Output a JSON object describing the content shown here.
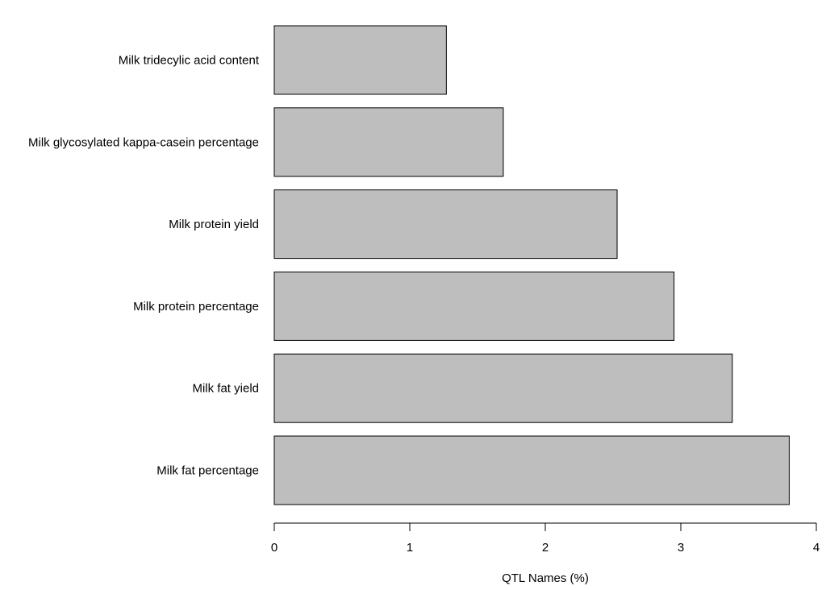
{
  "chart_data": {
    "type": "bar",
    "orientation": "horizontal",
    "categories": [
      "Milk tridecylic acid content",
      "Milk glycosylated kappa-casein percentage",
      "Milk protein yield",
      "Milk protein percentage",
      "Milk fat yield",
      "Milk fat percentage"
    ],
    "values": [
      1.27,
      1.69,
      2.53,
      2.95,
      3.38,
      3.8
    ],
    "title": "",
    "xlabel": "QTL Names (%)",
    "ylabel": "",
    "xlim": [
      0,
      4
    ],
    "xticks": [
      "0",
      "1",
      "2",
      "3",
      "4"
    ],
    "grid": false,
    "bar_color": "#bebebe",
    "bar_edge_color": "#000000"
  }
}
